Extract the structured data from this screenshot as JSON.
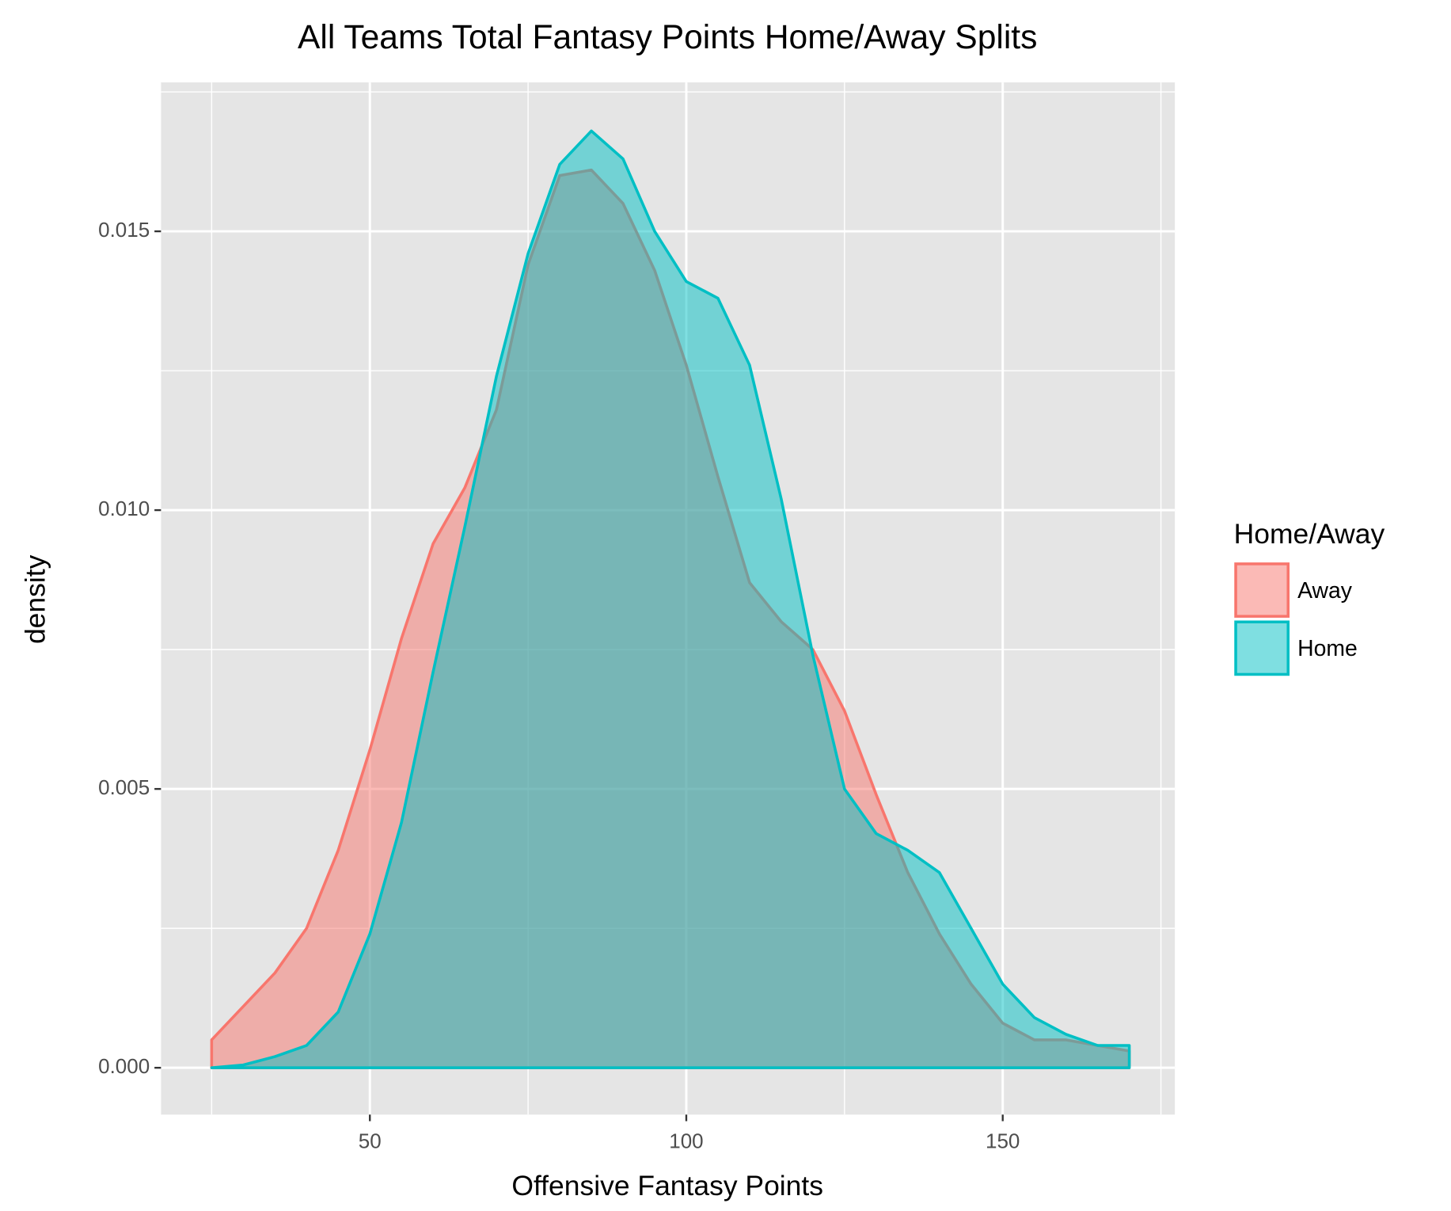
{
  "chart_data": {
    "type": "density",
    "title": "All Teams Total Fantasy Points Home/Away Splits",
    "x_label": "Offensive Fantasy Points",
    "y_label": "density",
    "legend_title": "Home/Away",
    "legend_position": "right",
    "grid": true,
    "x": [
      25,
      30,
      35,
      40,
      45,
      50,
      55,
      60,
      65,
      70,
      75,
      80,
      85,
      90,
      95,
      100,
      105,
      110,
      115,
      120,
      125,
      130,
      135,
      140,
      145,
      150,
      155,
      160,
      165,
      170
    ],
    "series": [
      {
        "name": "Away",
        "color": "#F8766D",
        "values": [
          0.0005,
          0.0011,
          0.0017,
          0.0025,
          0.0039,
          0.0057,
          0.0077,
          0.0094,
          0.0104,
          0.0118,
          0.0144,
          0.016,
          0.0161,
          0.0155,
          0.0143,
          0.0126,
          0.0106,
          0.0087,
          0.008,
          0.0075,
          0.0064,
          0.0049,
          0.0035,
          0.0024,
          0.0015,
          0.0008,
          0.0005,
          0.0005,
          0.0004,
          0.0003
        ]
      },
      {
        "name": "Home",
        "color": "#00BFC4",
        "values": [
          0.0,
          5e-05,
          0.0002,
          0.0004,
          0.001,
          0.0024,
          0.0044,
          0.0071,
          0.0097,
          0.0124,
          0.0146,
          0.0162,
          0.0168,
          0.0163,
          0.015,
          0.0141,
          0.0138,
          0.0126,
          0.0102,
          0.0074,
          0.005,
          0.0042,
          0.0039,
          0.0035,
          0.0025,
          0.0015,
          0.0009,
          0.0006,
          0.0004,
          0.0004
        ]
      }
    ],
    "xlim": [
      17,
      177.2
    ],
    "xticks": [
      50,
      100,
      150
    ],
    "ylim": [
      -0.00084,
      0.01767
    ],
    "yticks": [
      {
        "value": 0,
        "label": "0.000"
      },
      {
        "value": 0.005,
        "label": "0.005"
      },
      {
        "value": 0.01,
        "label": "0.010"
      },
      {
        "value": 0.015,
        "label": "0.015"
      }
    ]
  }
}
